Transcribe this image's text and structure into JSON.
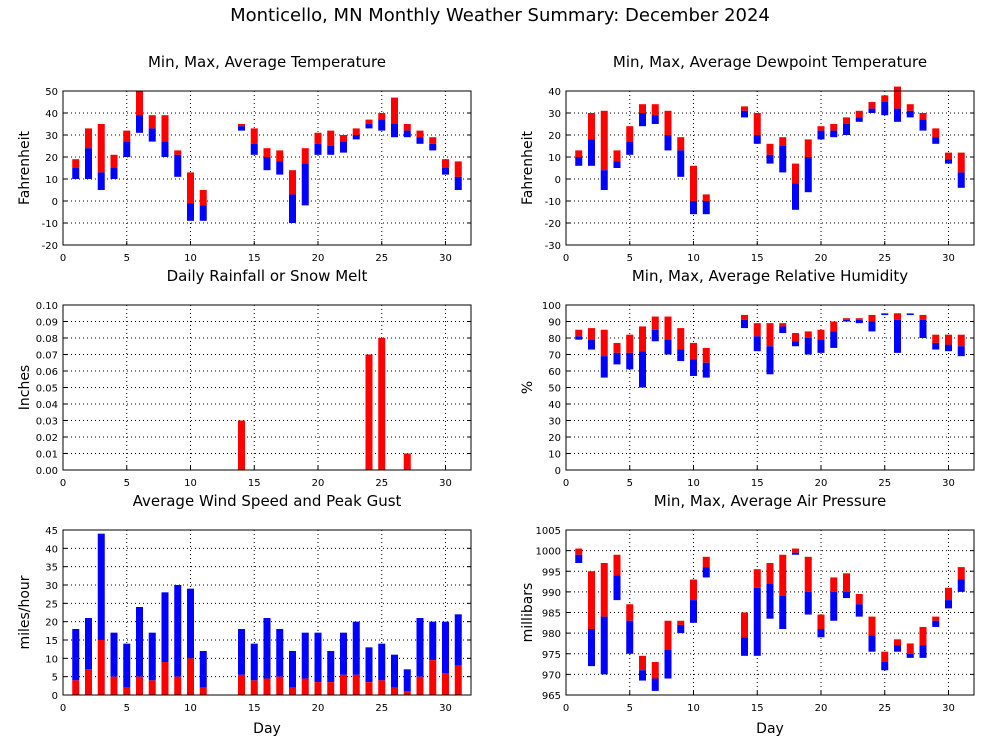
{
  "title": "Monticello, MN Monthly Weather Summary: December 2024",
  "colors": {
    "max_part": "#ff0000",
    "min_part": "#0000ff",
    "grid": "#000000"
  },
  "chart_data": [
    {
      "type": "bar",
      "title": "Min, Max, Average Temperature",
      "xlabel": "",
      "ylabel": "Fahrenheit",
      "xlim": [
        0,
        32
      ],
      "ylim": [
        -20,
        50
      ],
      "yticks": [
        -20,
        -10,
        0,
        10,
        20,
        30,
        40,
        50
      ],
      "xticks": [
        0,
        5,
        10,
        15,
        20,
        25,
        30
      ],
      "grid": true,
      "days": [
        {
          "x": 1,
          "min": 10,
          "avg": 15,
          "max": 19
        },
        {
          "x": 2,
          "min": 10,
          "avg": 24,
          "max": 33
        },
        {
          "x": 3,
          "min": 5,
          "avg": 13,
          "max": 35
        },
        {
          "x": 4,
          "min": 10,
          "avg": 15,
          "max": 21
        },
        {
          "x": 5,
          "min": 20,
          "avg": 27,
          "max": 32
        },
        {
          "x": 6,
          "min": 31,
          "avg": 39,
          "max": 50
        },
        {
          "x": 7,
          "min": 27,
          "avg": 33,
          "max": 39
        },
        {
          "x": 8,
          "min": 20,
          "avg": 27,
          "max": 39
        },
        {
          "x": 9,
          "min": 11,
          "avg": 21,
          "max": 23
        },
        {
          "x": 10,
          "min": -9,
          "avg": -1,
          "max": 13
        },
        {
          "x": 11,
          "min": -9,
          "avg": -2,
          "max": 5
        },
        {
          "x": 14,
          "min": 32,
          "avg": 34,
          "max": 35
        },
        {
          "x": 15,
          "min": 21,
          "avg": 26,
          "max": 33
        },
        {
          "x": 16,
          "min": 14,
          "avg": 20,
          "max": 24
        },
        {
          "x": 17,
          "min": 12,
          "avg": 18,
          "max": 23
        },
        {
          "x": 18,
          "min": -10,
          "avg": 3,
          "max": 14
        },
        {
          "x": 19,
          "min": -2,
          "avg": 17,
          "max": 24
        },
        {
          "x": 20,
          "min": 21,
          "avg": 26,
          "max": 31
        },
        {
          "x": 21,
          "min": 21,
          "avg": 25,
          "max": 32
        },
        {
          "x": 22,
          "min": 22,
          "avg": 27,
          "max": 30
        },
        {
          "x": 23,
          "min": 28,
          "avg": 30,
          "max": 33
        },
        {
          "x": 24,
          "min": 33,
          "avg": 35,
          "max": 37
        },
        {
          "x": 25,
          "min": 32,
          "avg": 37,
          "max": 40
        },
        {
          "x": 26,
          "min": 29,
          "avg": 35,
          "max": 47
        },
        {
          "x": 27,
          "min": 29,
          "avg": 32,
          "max": 35
        },
        {
          "x": 28,
          "min": 26,
          "avg": 29,
          "max": 32
        },
        {
          "x": 29,
          "min": 23,
          "avg": 26,
          "max": 29
        },
        {
          "x": 30,
          "min": 12,
          "avg": 15,
          "max": 19
        },
        {
          "x": 31,
          "min": 5,
          "avg": 11,
          "max": 18
        }
      ]
    },
    {
      "type": "bar",
      "title": "Min, Max, Average Dewpoint Temperature",
      "xlabel": "",
      "ylabel": "Fahrenheit",
      "xlim": [
        0,
        32
      ],
      "ylim": [
        -30,
        40
      ],
      "yticks": [
        -30,
        -20,
        -10,
        0,
        10,
        20,
        30,
        40
      ],
      "xticks": [
        0,
        5,
        10,
        15,
        20,
        25,
        30
      ],
      "grid": true,
      "days": [
        {
          "x": 1,
          "min": 6,
          "avg": 10,
          "max": 13
        },
        {
          "x": 2,
          "min": 6,
          "avg": 18,
          "max": 30
        },
        {
          "x": 3,
          "min": -5,
          "avg": 4,
          "max": 31
        },
        {
          "x": 4,
          "min": 5,
          "avg": 8,
          "max": 13
        },
        {
          "x": 5,
          "min": 11,
          "avg": 17,
          "max": 24
        },
        {
          "x": 6,
          "min": 24,
          "avg": 30,
          "max": 34
        },
        {
          "x": 7,
          "min": 25,
          "avg": 29,
          "max": 34
        },
        {
          "x": 8,
          "min": 13,
          "avg": 20,
          "max": 31
        },
        {
          "x": 9,
          "min": 1,
          "avg": 13,
          "max": 19
        },
        {
          "x": 10,
          "min": -16,
          "avg": -10,
          "max": 6
        },
        {
          "x": 11,
          "min": -16,
          "avg": -10,
          "max": -7
        },
        {
          "x": 14,
          "min": 28,
          "avg": 31,
          "max": 33
        },
        {
          "x": 15,
          "min": 16,
          "avg": 20,
          "max": 30
        },
        {
          "x": 16,
          "min": 7,
          "avg": 11,
          "max": 16
        },
        {
          "x": 17,
          "min": 3,
          "avg": 15,
          "max": 19
        },
        {
          "x": 18,
          "min": -14,
          "avg": -2,
          "max": 7
        },
        {
          "x": 19,
          "min": -6,
          "avg": 10,
          "max": 18
        },
        {
          "x": 20,
          "min": 18,
          "avg": 22,
          "max": 24
        },
        {
          "x": 21,
          "min": 19,
          "avg": 22,
          "max": 25
        },
        {
          "x": 22,
          "min": 20,
          "avg": 25,
          "max": 28
        },
        {
          "x": 23,
          "min": 26,
          "avg": 28,
          "max": 31
        },
        {
          "x": 24,
          "min": 30,
          "avg": 32,
          "max": 35
        },
        {
          "x": 25,
          "min": 29,
          "avg": 35,
          "max": 38
        },
        {
          "x": 26,
          "min": 26,
          "avg": 32,
          "max": 42
        },
        {
          "x": 27,
          "min": 28,
          "avg": 31,
          "max": 34
        },
        {
          "x": 28,
          "min": 22,
          "avg": 27,
          "max": 30
        },
        {
          "x": 29,
          "min": 16,
          "avg": 19,
          "max": 23
        },
        {
          "x": 30,
          "min": 7,
          "avg": 9,
          "max": 12
        },
        {
          "x": 31,
          "min": -4,
          "avg": 3,
          "max": 12
        }
      ]
    },
    {
      "type": "bar",
      "title": "Daily Rainfall or Snow Melt",
      "xlabel": "",
      "ylabel": "Inches",
      "xlim": [
        0,
        32
      ],
      "ylim": [
        0,
        0.1
      ],
      "yticks": [
        0,
        0.01,
        0.02,
        0.03,
        0.04,
        0.05,
        0.06,
        0.07,
        0.08,
        0.09,
        0.1
      ],
      "xticks": [
        0,
        5,
        10,
        15,
        20,
        25,
        30
      ],
      "grid": true,
      "x": [
        14,
        24,
        25,
        27
      ],
      "values": [
        0.03,
        0.07,
        0.08,
        0.01
      ]
    },
    {
      "type": "bar",
      "title": "Min, Max, Average Relative Humidity",
      "xlabel": "",
      "ylabel": "%",
      "xlim": [
        0,
        32
      ],
      "ylim": [
        0,
        100
      ],
      "yticks": [
        0,
        10,
        20,
        30,
        40,
        50,
        60,
        70,
        80,
        90,
        100
      ],
      "xticks": [
        0,
        5,
        10,
        15,
        20,
        25,
        30
      ],
      "grid": true,
      "days": [
        {
          "x": 1,
          "min": 79,
          "avg": 81,
          "max": 85
        },
        {
          "x": 2,
          "min": 73,
          "avg": 79,
          "max": 86
        },
        {
          "x": 3,
          "min": 56,
          "avg": 69,
          "max": 85
        },
        {
          "x": 4,
          "min": 64,
          "avg": 71,
          "max": 77
        },
        {
          "x": 5,
          "min": 61,
          "avg": 71,
          "max": 82
        },
        {
          "x": 6,
          "min": 50,
          "avg": 72,
          "max": 87
        },
        {
          "x": 7,
          "min": 78,
          "avg": 85,
          "max": 93
        },
        {
          "x": 8,
          "min": 70,
          "avg": 79,
          "max": 93
        },
        {
          "x": 9,
          "min": 66,
          "avg": 73,
          "max": 86
        },
        {
          "x": 10,
          "min": 57,
          "avg": 67,
          "max": 77
        },
        {
          "x": 11,
          "min": 56,
          "avg": 65,
          "max": 74
        },
        {
          "x": 14,
          "min": 86,
          "avg": 91,
          "max": 94
        },
        {
          "x": 15,
          "min": 72,
          "avg": 81,
          "max": 89
        },
        {
          "x": 16,
          "min": 58,
          "avg": 75,
          "max": 89
        },
        {
          "x": 17,
          "min": 83,
          "avg": 87,
          "max": 89
        },
        {
          "x": 18,
          "min": 75,
          "avg": 78,
          "max": 83
        },
        {
          "x": 19,
          "min": 70,
          "avg": 80,
          "max": 84
        },
        {
          "x": 20,
          "min": 71,
          "avg": 79,
          "max": 85
        },
        {
          "x": 21,
          "min": 74,
          "avg": 84,
          "max": 90
        },
        {
          "x": 22,
          "min": 90,
          "avg": 91,
          "max": 92
        },
        {
          "x": 23,
          "min": 89,
          "avg": 91,
          "max": 92
        },
        {
          "x": 24,
          "min": 84,
          "avg": 90,
          "max": 94
        },
        {
          "x": 25,
          "min": 94,
          "avg": 94.5,
          "max": 95
        },
        {
          "x": 26,
          "min": 71,
          "avg": 91,
          "max": 95
        },
        {
          "x": 27,
          "min": 94,
          "avg": 94.5,
          "max": 95
        },
        {
          "x": 28,
          "min": 80,
          "avg": 91,
          "max": 94
        },
        {
          "x": 29,
          "min": 73,
          "avg": 77,
          "max": 82
        },
        {
          "x": 30,
          "min": 72,
          "avg": 76,
          "max": 82
        },
        {
          "x": 31,
          "min": 69,
          "avg": 75,
          "max": 82
        }
      ]
    },
    {
      "type": "bar",
      "title": "Average Wind Speed and Peak Gust",
      "xlabel": "Day",
      "ylabel": "miles/hour",
      "xlim": [
        0,
        32
      ],
      "ylim": [
        0,
        45
      ],
      "yticks": [
        0,
        5,
        10,
        15,
        20,
        25,
        30,
        35,
        40,
        45
      ],
      "xticks": [
        0,
        5,
        10,
        15,
        20,
        25,
        30
      ],
      "grid": true,
      "days": [
        {
          "x": 1,
          "avg": 4,
          "gust": 18
        },
        {
          "x": 2,
          "avg": 7,
          "gust": 21
        },
        {
          "x": 3,
          "avg": 15,
          "gust": 44
        },
        {
          "x": 4,
          "avg": 5,
          "gust": 17
        },
        {
          "x": 5,
          "avg": 2,
          "gust": 14
        },
        {
          "x": 6,
          "avg": 5,
          "gust": 24
        },
        {
          "x": 7,
          "avg": 4,
          "gust": 17
        },
        {
          "x": 8,
          "avg": 9,
          "gust": 28
        },
        {
          "x": 9,
          "avg": 5,
          "gust": 30
        },
        {
          "x": 10,
          "avg": 10,
          "gust": 29
        },
        {
          "x": 11,
          "avg": 2,
          "gust": 12
        },
        {
          "x": 14,
          "avg": 5.5,
          "gust": 18
        },
        {
          "x": 15,
          "avg": 4,
          "gust": 14
        },
        {
          "x": 16,
          "avg": 4.5,
          "gust": 21
        },
        {
          "x": 17,
          "avg": 5,
          "gust": 18
        },
        {
          "x": 18,
          "avg": 2,
          "gust": 12
        },
        {
          "x": 19,
          "avg": 4.5,
          "gust": 17
        },
        {
          "x": 20,
          "avg": 3.5,
          "gust": 17
        },
        {
          "x": 21,
          "avg": 3.5,
          "gust": 12
        },
        {
          "x": 22,
          "avg": 5.5,
          "gust": 17
        },
        {
          "x": 23,
          "avg": 5.5,
          "gust": 20
        },
        {
          "x": 24,
          "avg": 3.5,
          "gust": 13
        },
        {
          "x": 25,
          "avg": 4,
          "gust": 14
        },
        {
          "x": 26,
          "avg": 2,
          "gust": 11
        },
        {
          "x": 27,
          "avg": 1,
          "gust": 7
        },
        {
          "x": 28,
          "avg": 5,
          "gust": 21
        },
        {
          "x": 29,
          "avg": 9.5,
          "gust": 20
        },
        {
          "x": 30,
          "avg": 6,
          "gust": 20
        },
        {
          "x": 31,
          "avg": 8,
          "gust": 22
        }
      ]
    },
    {
      "type": "bar",
      "title": "Min, Max, Average Air Pressure",
      "xlabel": "Day",
      "ylabel": "millibars",
      "xlim": [
        0,
        32
      ],
      "ylim": [
        965,
        1005
      ],
      "yticks": [
        965,
        970,
        975,
        980,
        985,
        990,
        995,
        1000,
        1005
      ],
      "xticks": [
        0,
        5,
        10,
        15,
        20,
        25,
        30
      ],
      "grid": true,
      "days": [
        {
          "x": 1,
          "min": 997,
          "avg": 999,
          "max": 1000.5
        },
        {
          "x": 2,
          "min": 972,
          "avg": 981,
          "max": 995
        },
        {
          "x": 3,
          "min": 970,
          "avg": 984,
          "max": 997
        },
        {
          "x": 4,
          "min": 988,
          "avg": 994,
          "max": 999
        },
        {
          "x": 5,
          "min": 975,
          "avg": 983,
          "max": 987
        },
        {
          "x": 6,
          "min": 968.5,
          "avg": 971,
          "max": 974.5
        },
        {
          "x": 7,
          "min": 966,
          "avg": 969,
          "max": 973
        },
        {
          "x": 8,
          "min": 969,
          "avg": 976,
          "max": 983
        },
        {
          "x": 9,
          "min": 980,
          "avg": 982,
          "max": 983
        },
        {
          "x": 10,
          "min": 982.5,
          "avg": 988,
          "max": 993
        },
        {
          "x": 11,
          "min": 993.5,
          "avg": 996,
          "max": 998.5
        },
        {
          "x": 14,
          "min": 974.5,
          "avg": 979,
          "max": 985
        },
        {
          "x": 15,
          "min": 974.5,
          "avg": 991,
          "max": 995.5
        },
        {
          "x": 16,
          "min": 983.5,
          "avg": 992,
          "max": 997
        },
        {
          "x": 17,
          "min": 981,
          "avg": 989,
          "max": 999
        },
        {
          "x": 18,
          "min": 999,
          "avg": 999.5,
          "max": 1000.5
        },
        {
          "x": 19,
          "min": 984.5,
          "avg": 990,
          "max": 998.5
        },
        {
          "x": 20,
          "min": 979,
          "avg": 981,
          "max": 984.5
        },
        {
          "x": 21,
          "min": 983,
          "avg": 990,
          "max": 993.5
        },
        {
          "x": 22,
          "min": 988.5,
          "avg": 990,
          "max": 994.5
        },
        {
          "x": 23,
          "min": 984,
          "avg": 987,
          "max": 989.5
        },
        {
          "x": 24,
          "min": 975.5,
          "avg": 979.5,
          "max": 984
        },
        {
          "x": 25,
          "min": 971,
          "avg": 973,
          "max": 975.5
        },
        {
          "x": 26,
          "min": 975.5,
          "avg": 977,
          "max": 978.5
        },
        {
          "x": 27,
          "min": 974,
          "avg": 975,
          "max": 977.5
        },
        {
          "x": 28,
          "min": 974,
          "avg": 977,
          "max": 981.5
        },
        {
          "x": 29,
          "min": 981.5,
          "avg": 983,
          "max": 984
        },
        {
          "x": 30,
          "min": 986,
          "avg": 988,
          "max": 991
        },
        {
          "x": 31,
          "min": 990,
          "avg": 993,
          "max": 996
        }
      ]
    }
  ]
}
